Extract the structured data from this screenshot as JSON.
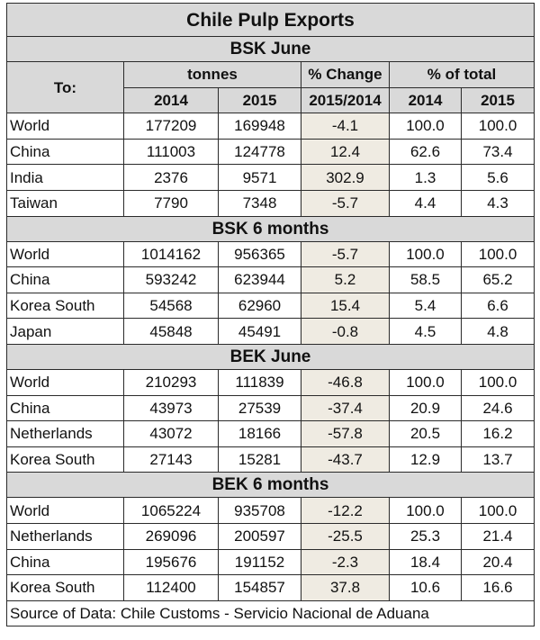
{
  "title": "Chile Pulp Exports",
  "headers": {
    "to": "To:",
    "tonnes": "tonnes",
    "pct_change": "% Change",
    "pct_total": "% of total",
    "y2014": "2014",
    "y2015": "2015",
    "period": "2015/2014",
    "y2014b": "2014",
    "y2015b": "2015"
  },
  "sections": [
    {
      "title": "BSK June",
      "rows": [
        {
          "country": "World",
          "t2014": "177209",
          "t2015": "169948",
          "chg": "-4.1",
          "p2014": "100.0",
          "p2015": "100.0"
        },
        {
          "country": "China",
          "t2014": "111003",
          "t2015": "124778",
          "chg": "12.4",
          "p2014": "62.6",
          "p2015": "73.4"
        },
        {
          "country": "India",
          "t2014": "2376",
          "t2015": "9571",
          "chg": "302.9",
          "p2014": "1.3",
          "p2015": "5.6"
        },
        {
          "country": "Taiwan",
          "t2014": "7790",
          "t2015": "7348",
          "chg": "-5.7",
          "p2014": "4.4",
          "p2015": "4.3"
        }
      ]
    },
    {
      "title": "BSK 6 months",
      "rows": [
        {
          "country": "World",
          "t2014": "1014162",
          "t2015": "956365",
          "chg": "-5.7",
          "p2014": "100.0",
          "p2015": "100.0"
        },
        {
          "country": "China",
          "t2014": "593242",
          "t2015": "623944",
          "chg": "5.2",
          "p2014": "58.5",
          "p2015": "65.2"
        },
        {
          "country": "Korea South",
          "t2014": "54568",
          "t2015": "62960",
          "chg": "15.4",
          "p2014": "5.4",
          "p2015": "6.6"
        },
        {
          "country": "Japan",
          "t2014": "45848",
          "t2015": "45491",
          "chg": "-0.8",
          "p2014": "4.5",
          "p2015": "4.8"
        }
      ]
    },
    {
      "title": "BEK June",
      "rows": [
        {
          "country": "World",
          "t2014": "210293",
          "t2015": "111839",
          "chg": "-46.8",
          "p2014": "100.0",
          "p2015": "100.0"
        },
        {
          "country": "China",
          "t2014": "43973",
          "t2015": "27539",
          "chg": "-37.4",
          "p2014": "20.9",
          "p2015": "24.6"
        },
        {
          "country": "Netherlands",
          "t2014": "43072",
          "t2015": "18166",
          "chg": "-57.8",
          "p2014": "20.5",
          "p2015": "16.2"
        },
        {
          "country": "Korea South",
          "t2014": "27143",
          "t2015": "15281",
          "chg": "-43.7",
          "p2014": "12.9",
          "p2015": "13.7"
        }
      ]
    },
    {
      "title": "BEK 6 months",
      "rows": [
        {
          "country": "World",
          "t2014": "1065224",
          "t2015": "935708",
          "chg": "-12.2",
          "p2014": "100.0",
          "p2015": "100.0"
        },
        {
          "country": "Netherlands",
          "t2014": "269096",
          "t2015": "200597",
          "chg": "-25.5",
          "p2014": "25.3",
          "p2015": "21.4"
        },
        {
          "country": "China",
          "t2014": "195676",
          "t2015": "191152",
          "chg": "-2.3",
          "p2014": "18.4",
          "p2015": "20.4"
        },
        {
          "country": "Korea South",
          "t2014": "112400",
          "t2015": "154857",
          "chg": "37.8",
          "p2014": "10.6",
          "p2015": "16.6"
        }
      ]
    }
  ],
  "source": "Source of Data: Chile Customs - Servicio Nacional de Aduana"
}
